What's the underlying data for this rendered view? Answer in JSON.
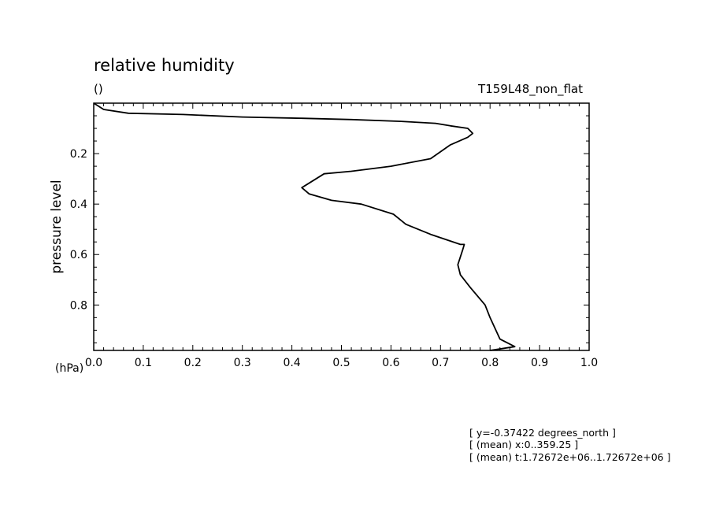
{
  "chart_data": {
    "type": "line",
    "title": "relative humidity",
    "units": "()",
    "experiment": "T159L48_non_flat",
    "ylabel": "pressure level",
    "yunit": "(hPa)",
    "xlabel": "",
    "xlim": [
      0.0,
      1.0
    ],
    "ylim": [
      0.0,
      0.98
    ],
    "y_inverted": true,
    "xticks": [
      "0.0",
      "0.1",
      "0.2",
      "0.3",
      "0.4",
      "0.5",
      "0.6",
      "0.7",
      "0.8",
      "0.9",
      "1.0"
    ],
    "yticks": [
      "0.2",
      "0.4",
      "0.6",
      "0.8"
    ],
    "ytick_values": [
      0.2,
      0.4,
      0.6,
      0.8
    ],
    "grid": false,
    "series": [
      {
        "color": "#000000",
        "x": [
          0.0,
          0.02,
          0.07,
          0.18,
          0.3,
          0.42,
          0.52,
          0.62,
          0.69,
          0.72,
          0.755,
          0.765,
          0.755,
          0.72,
          0.68,
          0.6,
          0.52,
          0.465,
          0.42,
          0.435,
          0.48,
          0.54,
          0.605,
          0.63,
          0.68,
          0.74,
          0.748,
          0.745,
          0.735,
          0.74,
          0.76,
          0.79,
          0.8,
          0.82,
          0.85,
          0.8
        ],
        "y": [
          0.0,
          0.025,
          0.04,
          0.045,
          0.055,
          0.06,
          0.065,
          0.072,
          0.08,
          0.09,
          0.1,
          0.12,
          0.135,
          0.165,
          0.22,
          0.25,
          0.27,
          0.28,
          0.335,
          0.36,
          0.385,
          0.4,
          0.44,
          0.48,
          0.52,
          0.56,
          0.56,
          0.58,
          0.64,
          0.68,
          0.73,
          0.8,
          0.85,
          0.935,
          0.965,
          0.98
        ]
      }
    ],
    "annotations": [
      "[ y=-0.37422 degrees_north ]",
      "[ (mean) x:0..359.25 ]",
      "[ (mean) t:1.72672e+06..1.72672e+06 ]"
    ]
  }
}
